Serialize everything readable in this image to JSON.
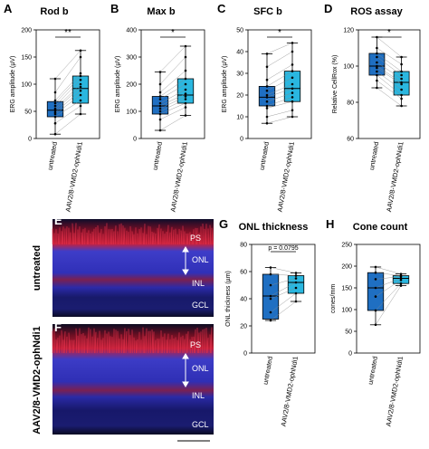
{
  "colors": {
    "untreated": "#1f6fc2",
    "treated": "#2ab7e0"
  },
  "chart_data": [
    {
      "panel": "A",
      "title": "Rod b",
      "type": "box",
      "ylabel": "ERG amplitude (µV)",
      "yticks": [
        0,
        50,
        100,
        150,
        200
      ],
      "ylim": [
        0,
        200
      ],
      "categories": [
        "untreated",
        "AAV2/8-VMD2-ophNdi1"
      ],
      "significance": "**",
      "series": [
        {
          "name": "untreated",
          "min": 8,
          "q1": 40,
          "median": 52,
          "q3": 68,
          "max": 110,
          "points": [
            8,
            28,
            40,
            45,
            48,
            52,
            55,
            60,
            65,
            70,
            85,
            110
          ]
        },
        {
          "name": "AAV2/8-VMD2-ophNdi1",
          "min": 45,
          "q1": 65,
          "median": 92,
          "q3": 115,
          "max": 162,
          "points": [
            45,
            60,
            70,
            80,
            88,
            95,
            100,
            108,
            115,
            120,
            150,
            162
          ]
        }
      ]
    },
    {
      "panel": "B",
      "title": "Max b",
      "type": "box",
      "ylabel": "ERG amplitude (µV)",
      "yticks": [
        0,
        100,
        200,
        300,
        400
      ],
      "ylim": [
        0,
        400
      ],
      "categories": [
        "untreated",
        "AAV2/8-VMD2-ophNdi1"
      ],
      "significance": "*",
      "series": [
        {
          "name": "untreated",
          "min": 30,
          "q1": 90,
          "median": 120,
          "q3": 155,
          "max": 245,
          "points": [
            30,
            70,
            90,
            100,
            110,
            120,
            130,
            145,
            155,
            170,
            200,
            245
          ]
        },
        {
          "name": "AAV2/8-VMD2-ophNdi1",
          "min": 85,
          "q1": 130,
          "median": 160,
          "q3": 220,
          "max": 340,
          "points": [
            85,
            115,
            130,
            145,
            155,
            165,
            180,
            200,
            220,
            250,
            300,
            340
          ]
        }
      ]
    },
    {
      "panel": "C",
      "title": "SFC b",
      "type": "box",
      "ylabel": "ERG amplitude (µV)",
      "yticks": [
        0,
        10,
        20,
        30,
        40,
        50
      ],
      "ylim": [
        0,
        50
      ],
      "categories": [
        "untreated",
        "AAV2/8-VMD2-ophNdi1"
      ],
      "significance": "*",
      "series": [
        {
          "name": "untreated",
          "min": 7,
          "q1": 15,
          "median": 19,
          "q3": 24,
          "max": 39,
          "points": [
            7,
            10,
            14,
            15,
            17,
            19,
            20,
            22,
            24,
            27,
            33,
            39
          ]
        },
        {
          "name": "AAV2/8-VMD2-ophNdi1",
          "min": 10,
          "q1": 17,
          "median": 23,
          "q3": 31,
          "max": 44,
          "points": [
            10,
            13,
            17,
            19,
            21,
            23,
            25,
            28,
            31,
            34,
            40,
            44
          ]
        }
      ]
    },
    {
      "panel": "D",
      "title": "ROS assay",
      "type": "box",
      "ylabel": "Relative CellRox (%)",
      "yticks": [
        60,
        80,
        100,
        120
      ],
      "ylim": [
        60,
        120
      ],
      "categories": [
        "untreated",
        "AAV2/8-VMD2-ophNdi1"
      ],
      "significance": "*",
      "series": [
        {
          "name": "untreated",
          "min": 88,
          "q1": 95,
          "median": 100,
          "q3": 107,
          "max": 116,
          "points": [
            88,
            92,
            95,
            97,
            99,
            100,
            102,
            105,
            107,
            110,
            116
          ]
        },
        {
          "name": "AAV2/8-VMD2-ophNdi1",
          "min": 78,
          "q1": 84,
          "median": 91,
          "q3": 97,
          "max": 105,
          "points": [
            78,
            82,
            84,
            87,
            90,
            91,
            93,
            95,
            97,
            101,
            105
          ]
        }
      ]
    },
    {
      "panel": "G",
      "title": "ONL thickness",
      "type": "box",
      "ylabel": "ONL thickness (µm)",
      "yticks": [
        0,
        20,
        40,
        60,
        80
      ],
      "ylim": [
        0,
        80
      ],
      "categories": [
        "untreated",
        "AAV2/8-VMD2-ophNdi1"
      ],
      "significance": "p = 0.0795",
      "series": [
        {
          "name": "untreated",
          "min": 24,
          "q1": 25,
          "median": 42,
          "q3": 58,
          "max": 63,
          "points": [
            24,
            30,
            40,
            42,
            50,
            58,
            63
          ]
        },
        {
          "name": "AAV2/8-VMD2-ophNdi1",
          "min": 38,
          "q1": 44,
          "median": 52,
          "q3": 57,
          "max": 59,
          "points": [
            38,
            44,
            48,
            52,
            55,
            57,
            59
          ]
        }
      ]
    },
    {
      "panel": "H",
      "title": "Cone count",
      "type": "box",
      "ylabel": "cones/mm",
      "yticks": [
        0,
        50,
        100,
        150,
        200,
        250
      ],
      "ylim": [
        0,
        250
      ],
      "categories": [
        "untreated",
        "AAV2/8-VMD2-ophNdi1"
      ],
      "significance": "",
      "series": [
        {
          "name": "untreated",
          "min": 65,
          "q1": 98,
          "median": 150,
          "q3": 185,
          "max": 198,
          "points": [
            65,
            98,
            130,
            150,
            170,
            185,
            198
          ]
        },
        {
          "name": "AAV2/8-VMD2-ophNdi1",
          "min": 155,
          "q1": 160,
          "median": 172,
          "q3": 178,
          "max": 182,
          "points": [
            155,
            160,
            168,
            172,
            176,
            178,
            182
          ]
        }
      ]
    }
  ],
  "micrographs": {
    "e": {
      "label": "E",
      "side_label": "untreated",
      "layers": [
        "PS",
        "ONL",
        "INL",
        "GCL"
      ]
    },
    "f": {
      "label": "F",
      "side_label": "AAV2/8-VMD2-ophNdi1",
      "layers": [
        "PS",
        "ONL",
        "INL",
        "GCL"
      ]
    }
  }
}
